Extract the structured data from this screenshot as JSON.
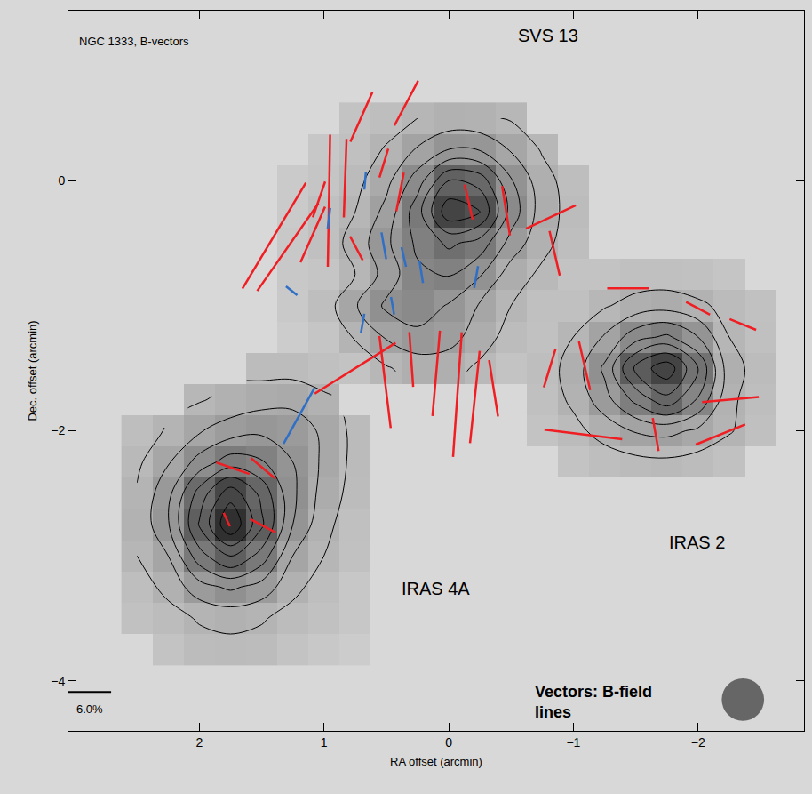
{
  "chart_data": {
    "type": "map",
    "title": "NGC 1333, B-vectors",
    "xlabel": "RA offset (arcmin)",
    "ylabel": "Dec. offset (arcmin)",
    "xlim": [
      3.05,
      -2.85
    ],
    "ylim": [
      -4.4,
      1.36
    ],
    "xticks": [
      2,
      1,
      0,
      {
        "value": -1,
        "label": "−1"
      },
      {
        "value": -2,
        "label": "−2"
      }
    ],
    "yticks": [
      {
        "value": -4,
        "label": "−4"
      },
      {
        "value": -2,
        "label": "−2"
      },
      0
    ],
    "grid": false,
    "annotations": [
      "SVS 13",
      "IRAS 2",
      "IRAS 4A",
      "Vectors: B-field lines"
    ],
    "map": {
      "x": [
        -2.5,
        -2.25,
        -2.0,
        -1.75,
        -1.5,
        -1.25,
        -1.0,
        -0.75,
        -0.5,
        -0.25,
        0,
        0.25,
        0.5,
        0.75,
        1.0,
        1.25,
        1.5,
        1.75,
        2.0,
        2.25,
        2.5
      ],
      "y": [
        -3.75,
        -3.5,
        -3.25,
        -3.0,
        -2.75,
        -2.5,
        -2.25,
        -2.0,
        -1.75,
        -1.5,
        -1.25,
        -1.0,
        -0.75,
        -0.5,
        -0.25,
        0,
        0.25,
        0.5
      ],
      "z": [
        [
          null,
          null,
          null,
          null,
          null,
          null,
          null,
          null,
          null,
          null,
          null,
          null,
          null,
          1.2,
          1.4,
          1.7,
          2.1,
          2.2,
          2.1,
          1.7,
          null
        ],
        [
          null,
          null,
          null,
          null,
          null,
          null,
          null,
          null,
          null,
          null,
          null,
          null,
          null,
          1.5,
          1.8,
          2.1,
          2.6,
          2.8,
          2.6,
          2.1,
          1.8
        ],
        [
          null,
          null,
          null,
          null,
          null,
          null,
          null,
          null,
          null,
          null,
          null,
          null,
          null,
          1.5,
          2.0,
          2.8,
          4.1,
          4.7,
          4.1,
          2.8,
          2.0
        ],
        [
          null,
          null,
          null,
          null,
          null,
          null,
          null,
          null,
          null,
          null,
          null,
          null,
          null,
          1.8,
          2.5,
          3.5,
          6.1,
          7.6,
          6.1,
          3.5,
          2.5
        ],
        [
          null,
          null,
          null,
          null,
          null,
          null,
          null,
          null,
          null,
          null,
          null,
          null,
          null,
          1.9,
          2.8,
          4.5,
          7.7,
          10.4,
          7.6,
          4.4,
          2.7
        ],
        [
          null,
          null,
          null,
          null,
          null,
          null,
          null,
          null,
          null,
          null,
          null,
          null,
          null,
          2.1,
          3.1,
          4.7,
          7.2,
          9.1,
          6.9,
          4.2,
          2.6
        ],
        [
          null,
          1.8,
          2.1,
          2.3,
          2.2,
          2.0,
          1.7,
          null,
          null,
          null,
          null,
          null,
          null,
          2.2,
          3.3,
          4.5,
          5.6,
          6.0,
          4.9,
          3.4,
          2.3
        ],
        [
          1.9,
          2.6,
          3.3,
          3.8,
          3.6,
          2.9,
          2.2,
          1.7,
          null,
          null,
          null,
          null,
          null,
          2.2,
          3.3,
          4.1,
          4.3,
          4.0,
          3.4,
          2.6,
          2.0
        ],
        [
          2.0,
          2.7,
          5.4,
          7.2,
          5.8,
          4.1,
          2.7,
          1.9,
          null,
          null,
          null,
          null,
          null,
          null,
          2.7,
          3.2,
          3.1,
          2.8,
          2.4,
          null,
          null
        ],
        [
          2.1,
          2.9,
          6.5,
          9.2,
          7.8,
          4.7,
          2.9,
          2.0,
          1.7,
          2.3,
          2.9,
          2.9,
          2.4,
          1.7,
          1.9,
          2.1,
          2.1,
          null,
          null,
          null,
          null
        ],
        [
          1.9,
          2.5,
          4.5,
          5.7,
          5.1,
          3.6,
          2.5,
          1.8,
          2.1,
          3.0,
          3.9,
          4.2,
          3.6,
          2.6,
          1.6,
          1.2,
          null,
          null,
          null,
          null,
          null
        ],
        [
          1.8,
          2.2,
          2.7,
          3.1,
          2.9,
          2.4,
          1.9,
          1.9,
          2.5,
          3.4,
          4.4,
          5.1,
          4.7,
          3.4,
          2.0,
          1.35,
          null,
          null,
          null,
          null,
          null
        ],
        [
          null,
          1.6,
          1.8,
          1.9,
          1.9,
          1.7,
          1.7,
          2.3,
          3.0,
          4.6,
          5.6,
          5.3,
          3.9,
          2.5,
          1.6,
          1.4,
          null,
          null,
          null,
          null,
          null
        ],
        [
          null,
          null,
          null,
          null,
          null,
          null,
          2.0,
          2.8,
          4.1,
          6.1,
          6.7,
          5.7,
          4.3,
          2.9,
          1.9,
          1.4,
          null,
          null,
          null,
          null,
          null
        ],
        [
          null,
          null,
          null,
          null,
          null,
          null,
          2.1,
          3.0,
          5.1,
          8.5,
          9.2,
          6.1,
          3.8,
          2.5,
          1.9,
          1.3,
          null,
          null,
          null,
          null,
          null
        ],
        [
          null,
          null,
          null,
          null,
          null,
          null,
          2.0,
          2.9,
          4.6,
          7.1,
          7.5,
          5.0,
          3.2,
          2.2,
          1.6,
          1.3,
          null,
          null,
          null,
          null,
          null
        ],
        [
          null,
          null,
          null,
          null,
          null,
          null,
          null,
          2.4,
          3.4,
          4.4,
          4.5,
          3.6,
          2.6,
          1.9,
          1.5,
          null,
          null,
          null,
          null,
          null,
          null
        ],
        [
          null,
          null,
          null,
          null,
          null,
          null,
          null,
          null,
          2.4,
          2.7,
          2.8,
          2.5,
          2.0,
          1.7,
          null,
          null,
          null,
          null,
          null,
          null,
          null
        ]
      ],
      "zlim": [
        1,
        11
      ],
      "contour_levels": [
        2.5,
        3.5,
        4.5,
        5.5,
        6.5,
        7.5,
        8.5,
        9.5
      ]
    },
    "vectors": [
      {
        "color": "#f01e23",
        "x": [
          1.4,
          1.29,
          1.09,
          1.04,
          0.96,
          0.83,
          0.7,
          0.34,
          0.52,
          0.39,
          0.74,
          -0.16,
          -0.46,
          -0.82,
          -0.85,
          0.51,
          0.3,
          0.1,
          -0.07,
          -0.21,
          -0.36,
          0.75,
          -1.44,
          -2.0,
          -2.36,
          -0.81,
          -1.09,
          -2.26,
          -1.08,
          -1.66,
          -2.18,
          1.73,
          1.49,
          1.49,
          1.78
        ],
        "y": [
          -0.44,
          -0.53,
          -0.43,
          -0.15,
          -0.16,
          0.02,
          0.51,
          0.62,
          0.14,
          -0.09,
          -0.54,
          -0.17,
          -0.24,
          -0.29,
          -0.58,
          -1.61,
          -1.43,
          -1.54,
          -1.71,
          -1.73,
          -1.66,
          -1.5,
          -0.86,
          -1.02,
          -1.15,
          -1.5,
          -1.48,
          -1.75,
          -2.03,
          -2.03,
          -2.03,
          -2.3,
          -2.3,
          -2.76,
          -2.71
        ],
        "p": [
          17.3,
          15,
          8.5,
          5.3,
          18.5,
          11,
          7.6,
          7.1,
          4.2,
          5.5,
          3.8,
          5,
          7,
          7.7,
          6.4,
          13,
          7.7,
          12,
          17.5,
          13,
          8,
          13.4,
          5.9,
          3.8,
          4,
          5.6,
          7,
          8,
          11,
          4.7,
          7.5,
          4.9,
          4.4,
          4,
          2.1
        ],
        "pa": [
          149,
          145,
          156,
          161,
          179,
          178,
          156,
          152,
          163,
          169,
          28,
          13,
          9,
          115,
          13,
          7,
          4,
          175,
          176,
          174,
          9,
          122,
          90,
          62,
          68,
          163,
          13,
          95,
          83,
          10,
          112,
          71,
          50,
          62,
          25
        ]
      },
      {
        "color": "#2f6fc6",
        "x": [
          1.2,
          0.67,
          0.96,
          1.26,
          0.52,
          0.36,
          0.69,
          0.45,
          0.22,
          -0.22
        ],
        "y": [
          -1.88,
          0.0,
          -0.3,
          -0.88,
          -0.52,
          -0.61,
          -1.14,
          -1.0,
          -0.73,
          -0.77
        ],
        "p": [
          9,
          2.5,
          2.9,
          2.0,
          3.8,
          2.8,
          2.7,
          2.5,
          3.1,
          3.1
        ],
        "pa": [
          151,
          175,
          173,
          52,
          10,
          13,
          170,
          10,
          9,
          170
        ]
      }
    ],
    "scale_bar": {
      "value": 6,
      "label": "6.0%"
    },
    "beam": {
      "x": -2.36,
      "y": -4.15,
      "diameter": 0.34
    }
  }
}
